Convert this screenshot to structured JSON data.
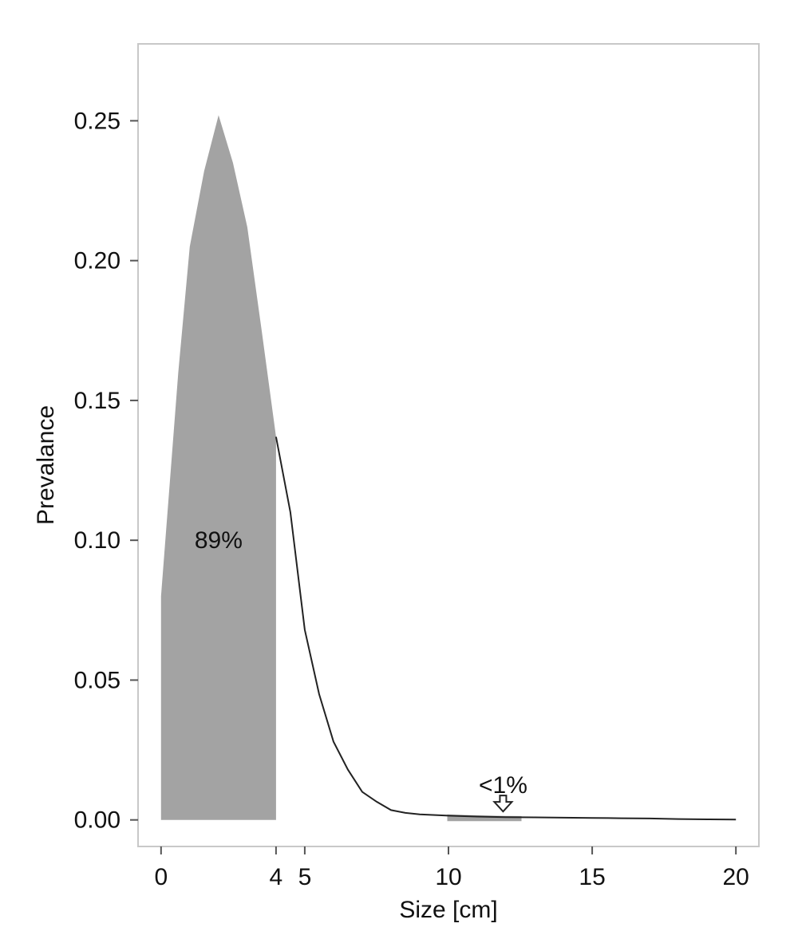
{
  "chart_data": {
    "type": "area",
    "title": "",
    "xlabel": "Size [cm]",
    "ylabel": "Prevalance",
    "xlim": [
      -0.8,
      20.8
    ],
    "ylim": [
      -0.0095,
      0.2775
    ],
    "x_ticks": [
      "0",
      "4",
      "5",
      "10",
      "15",
      "20"
    ],
    "y_ticks": [
      "0.00",
      "0.05",
      "0.10",
      "0.15",
      "0.20",
      "0.25"
    ],
    "grid": false,
    "legend": "none",
    "series": [
      {
        "x": [
          0,
          0.3,
          0.6,
          1.0,
          1.5,
          2.0,
          2.5,
          3.0,
          3.5,
          4.0,
          4.5,
          5.0,
          5.5,
          6.0,
          6.5,
          7.0,
          7.5,
          8.0,
          8.5,
          9.0,
          10.0,
          11.0,
          12.0,
          13.0,
          14.0,
          15.0,
          16.0,
          17.0,
          18.0,
          19.0,
          20.0
        ],
        "y": [
          0.08,
          0.12,
          0.16,
          0.205,
          0.232,
          0.252,
          0.235,
          0.212,
          0.175,
          0.137,
          0.11,
          0.068,
          0.045,
          0.028,
          0.018,
          0.01,
          0.0065,
          0.0035,
          0.0025,
          0.002,
          0.0015,
          0.0012,
          0.001,
          0.0009,
          0.0008,
          0.0007,
          0.0006,
          0.0005,
          0.0003,
          0.0002,
          0.0001
        ]
      }
    ],
    "shaded_regions": [
      {
        "x_from": 0,
        "x_to": 4,
        "label": "89%"
      },
      {
        "x_from": 10,
        "x_to": 12.5,
        "label": "<1%"
      }
    ],
    "annotations": [
      {
        "text": "89%",
        "x": 2.0,
        "y": 0.1
      },
      {
        "text": "<1%",
        "x": 11.9,
        "y": 0.0125,
        "arrow_to": [
          11.9,
          0.003
        ]
      }
    ],
    "colors": {
      "fill": "#a3a3a3",
      "line": "#222222",
      "frame": "#c8c8c8",
      "axis": "#555555"
    }
  }
}
